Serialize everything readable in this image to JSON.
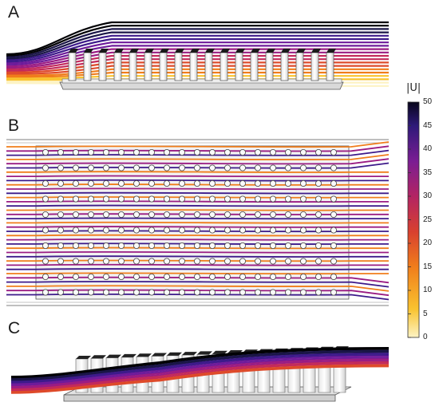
{
  "panels": {
    "a": {
      "label": "A"
    },
    "b": {
      "label": "B"
    },
    "c": {
      "label": "C"
    }
  },
  "colorbar": {
    "title": "|U|",
    "ticks": [
      "50",
      "45",
      "40",
      "35",
      "30",
      "25",
      "20",
      "15",
      "10",
      "5",
      "0"
    ],
    "range": [
      0,
      50
    ],
    "colors": [
      "#fdf3c4",
      "#f9c32f",
      "#f07d1b",
      "#de4a2a",
      "#c32a5b",
      "#9a1c83",
      "#6e1b9a",
      "#3d1a8a",
      "#1a1547",
      "#000004"
    ]
  }
}
